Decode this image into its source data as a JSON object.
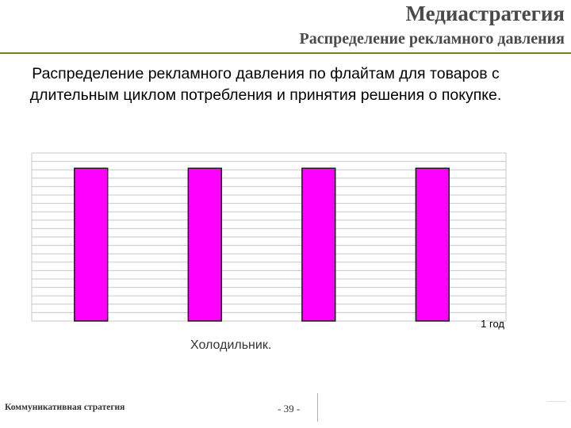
{
  "header": {
    "title": "Медиастратегия",
    "subtitle": "Распределение рекламного давления"
  },
  "slide": {
    "heading": "Распределение рекламного давления по флайтам для товаров с длительным циклом потребления и принятия решения о покупке."
  },
  "chart_data": {
    "type": "bar",
    "title": "",
    "xlabel": "",
    "ylabel": "",
    "x_end_label": "1 год",
    "caption": "Холодильник.",
    "grid": true,
    "bar_color": "#ff00ff",
    "bars": [
      {
        "start": 0.09,
        "end": 0.16,
        "value": 1
      },
      {
        "start": 0.33,
        "end": 0.4,
        "value": 1
      },
      {
        "start": 0.57,
        "end": 0.64,
        "value": 1
      },
      {
        "start": 0.81,
        "end": 0.88,
        "value": 1
      }
    ],
    "xlim": [
      0,
      1
    ],
    "ylim": [
      0,
      1.1
    ]
  },
  "footer": {
    "left": "Коммуникативная стратегия",
    "page": "- 39 -"
  }
}
